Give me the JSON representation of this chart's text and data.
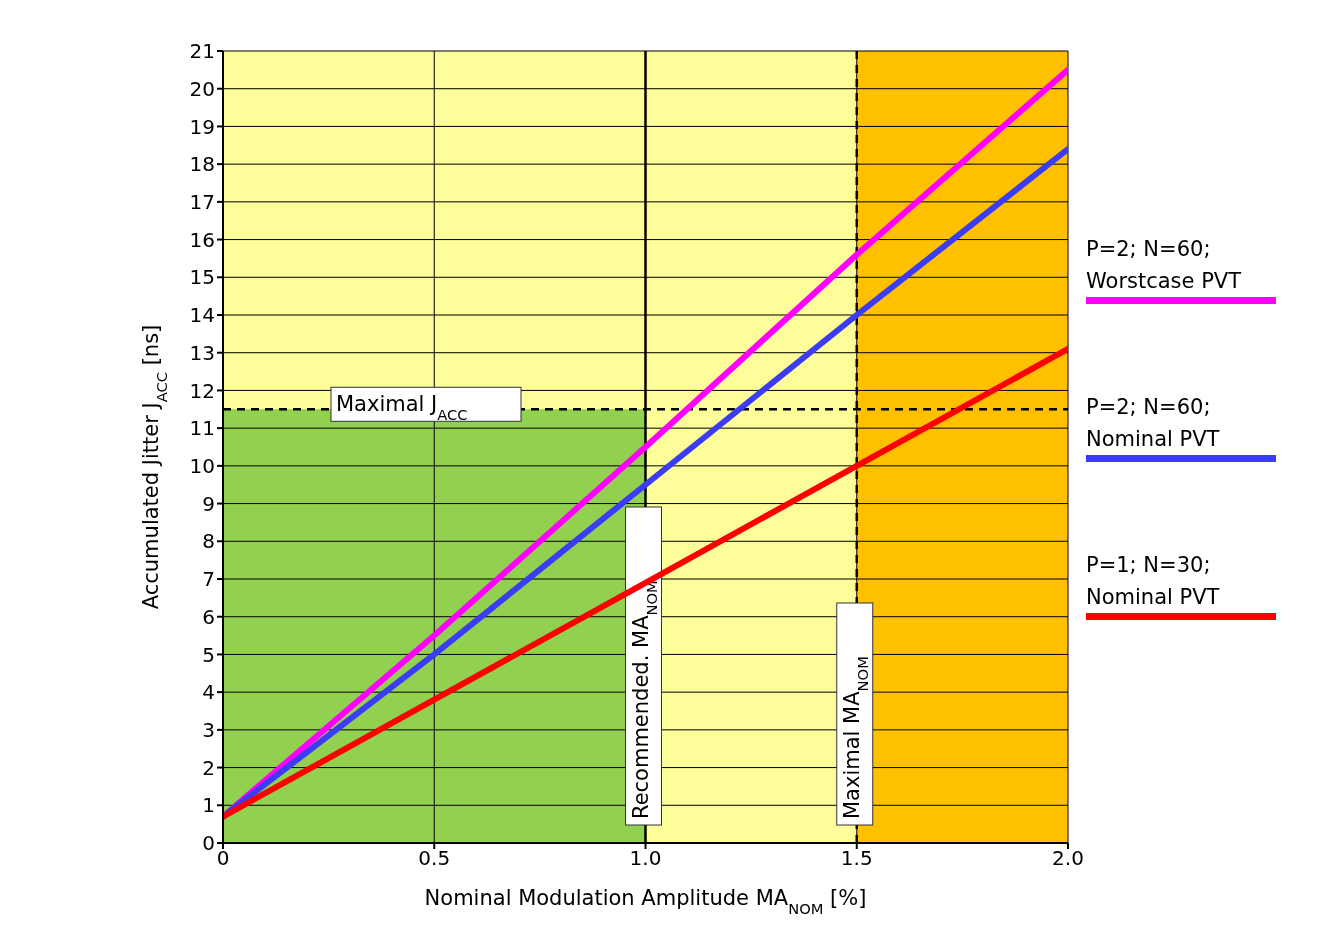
{
  "chart_data": {
    "type": "line",
    "xlabel": "Nominal Modulation Amplitude MA$_{NOM}$ [%]",
    "ylabel": "Accumulated Jitter J$_{ACC}$ [ns]",
    "x": [
      0,
      0.5,
      1.0,
      1.5,
      2.0
    ],
    "series": [
      {
        "name": "P=2; N=60; Worstcase PVT",
        "color": "#ff00ff",
        "values": [
          0.7,
          5.5,
          10.5,
          15.6,
          20.5
        ]
      },
      {
        "name": "P=2; N=60; Nominal PVT",
        "color": "#3c3cf5",
        "values": [
          0.7,
          5.0,
          9.5,
          14.0,
          18.4
        ]
      },
      {
        "name": "P=1; N=30; Nominal PVT",
        "color": "#ff0000",
        "values": [
          0.7,
          3.8,
          6.9,
          10.0,
          13.1
        ]
      }
    ],
    "xlim": [
      0,
      2.0
    ],
    "xticks": [
      0,
      0.5,
      {
        "value": 1.0,
        "label": "1.0"
      },
      1.5,
      {
        "value": 2.0,
        "label": "2.0"
      }
    ],
    "ylim": [
      0,
      21
    ],
    "yticks": [
      0,
      1,
      2,
      3,
      4,
      5,
      6,
      7,
      8,
      9,
      10,
      11,
      12,
      13,
      14,
      15,
      16,
      17,
      18,
      19,
      20,
      21
    ],
    "bands": [
      {
        "axis": "x",
        "from": 0,
        "to": 1.5,
        "color": "#fdfd9a"
      },
      {
        "axis": "x",
        "from": 1.5,
        "to": 2.0,
        "color": "#ffc000"
      },
      {
        "axis": "x",
        "from": 0,
        "to": 1.0,
        "color": "#92d050"
      }
    ],
    "ref_lines": [
      {
        "axis": "y",
        "value": 11.5,
        "label": "Maximal J$_{ACC}$",
        "line_style": "dashed"
      },
      {
        "axis": "x",
        "value": 1.0,
        "label": "Recommended. MA$_{NOM}$",
        "line_style": "solid"
      },
      {
        "axis": "x",
        "value": 1.5,
        "label": "Maximal MA$_{NOM}$",
        "line_style": "dashed"
      }
    ],
    "grid": true,
    "legend": "right",
    "marker": "none",
    "line_style": "solid"
  }
}
